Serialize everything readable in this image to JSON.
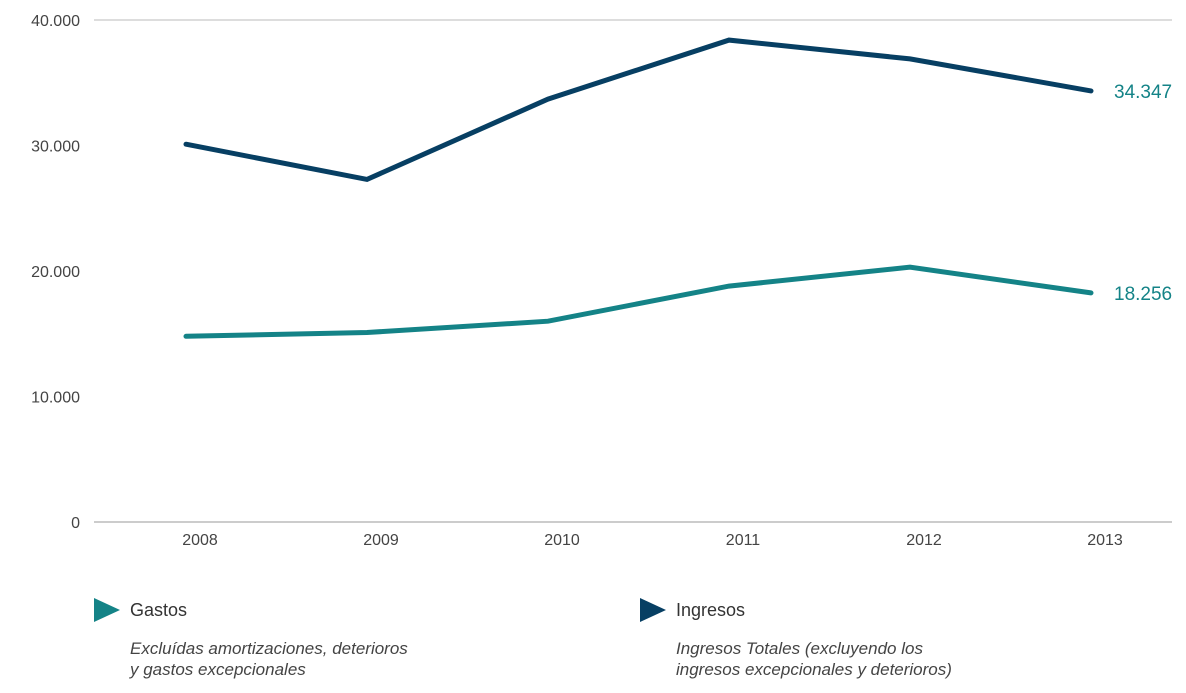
{
  "chart_data": {
    "type": "line",
    "categories": [
      "2008",
      "2009",
      "2010",
      "2011",
      "2012",
      "2013"
    ],
    "ylim": [
      0,
      40000
    ],
    "yticks": [
      "0",
      "10.000",
      "20.000",
      "30.000",
      "40.000"
    ],
    "ytick_values": [
      0,
      10000,
      20000,
      30000,
      40000
    ],
    "grid": "top line only",
    "series": [
      {
        "name": "Ingresos",
        "color": "#073f63",
        "values": [
          30100,
          27300,
          33700,
          38400,
          36900,
          34347
        ],
        "end_label": "34.347"
      },
      {
        "name": "Gastos",
        "color": "#148387",
        "values": [
          14800,
          15100,
          16000,
          18800,
          20300,
          18256
        ],
        "end_label": "18.256"
      }
    ]
  },
  "legend": {
    "gastos": {
      "title": "Gastos",
      "color": "#148387",
      "note_line1": "Excluídas amortizaciones, deterioros",
      "note_line2": "y gastos excepcionales"
    },
    "ingresos": {
      "title": "Ingresos",
      "color": "#073f63",
      "note_line1": "Ingresos Totales (excluyendo los",
      "note_line2": "ingresos excepcionales y deterioros)"
    }
  }
}
